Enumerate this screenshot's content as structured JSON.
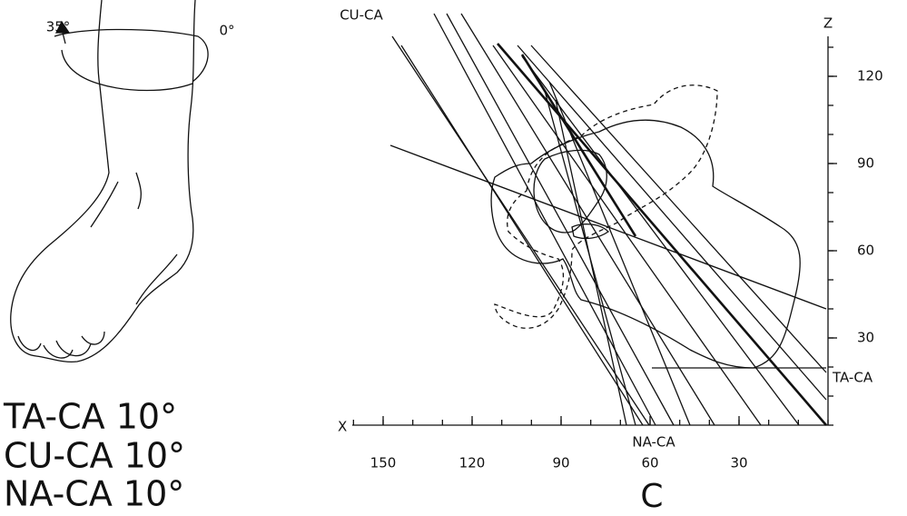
{
  "foot_panel": {
    "rotation_start": "35°",
    "rotation_end": "0°",
    "angles": [
      "TA-CA 10°",
      "CU-CA 10°",
      "NA-CA 10°"
    ]
  },
  "diagram": {
    "x_axis": {
      "label": "X",
      "ticks": [
        150,
        120,
        90,
        60,
        30
      ]
    },
    "z_axis": {
      "label": "Z",
      "ticks": [
        120,
        90,
        60,
        30
      ]
    },
    "line_labels": [
      "CU-CA",
      "NA-CA",
      "TA-CA"
    ],
    "panel_label": "C"
  }
}
